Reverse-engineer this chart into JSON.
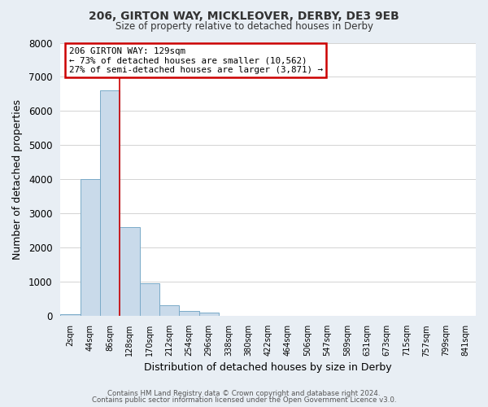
{
  "title1": "206, GIRTON WAY, MICKLEOVER, DERBY, DE3 9EB",
  "title2": "Size of property relative to detached houses in Derby",
  "xlabel": "Distribution of detached houses by size in Derby",
  "ylabel": "Number of detached properties",
  "footer1": "Contains HM Land Registry data © Crown copyright and database right 2024.",
  "footer2": "Contains public sector information licensed under the Open Government Licence v3.0.",
  "bin_labels": [
    "2sqm",
    "44sqm",
    "86sqm",
    "128sqm",
    "170sqm",
    "212sqm",
    "254sqm",
    "296sqm",
    "338sqm",
    "380sqm",
    "422sqm",
    "464sqm",
    "506sqm",
    "547sqm",
    "589sqm",
    "631sqm",
    "673sqm",
    "715sqm",
    "757sqm",
    "799sqm",
    "841sqm"
  ],
  "bar_values": [
    50,
    4000,
    6600,
    2600,
    960,
    320,
    155,
    100,
    0,
    0,
    0,
    0,
    0,
    0,
    0,
    0,
    0,
    0,
    0,
    0,
    0
  ],
  "bar_color": "#c9daea",
  "bar_edge_color": "#7aaac8",
  "ylim": [
    0,
    8000
  ],
  "yticks": [
    0,
    1000,
    2000,
    3000,
    4000,
    5000,
    6000,
    7000,
    8000
  ],
  "red_line_x": 2.5,
  "annotation_title": "206 GIRTON WAY: 129sqm",
  "annotation_line1": "← 73% of detached houses are smaller (10,562)",
  "annotation_line2": "27% of semi-detached houses are larger (3,871) →",
  "annotation_box_facecolor": "#ffffff",
  "annotation_box_edgecolor": "#cc0000",
  "grid_color": "#cccccc",
  "background_color": "#ffffff",
  "fig_background_color": "#e8eef4"
}
